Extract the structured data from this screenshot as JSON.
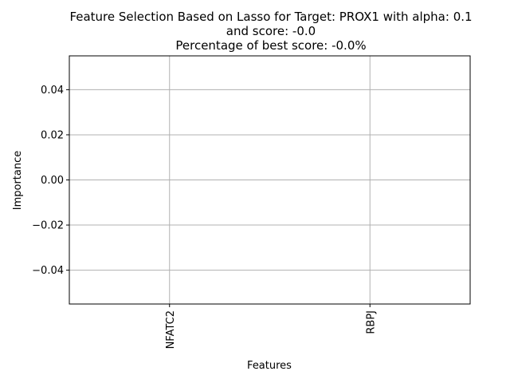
{
  "chart_data": {
    "type": "bar",
    "title_lines": [
      "Feature Selection Based on Lasso for Target: PROX1 with alpha: 0.1",
      "and score: -0.0",
      "Percentage of best score: -0.0%"
    ],
    "xlabel": "Features",
    "ylabel": "Importance",
    "categories": [
      "NFATC2",
      "RBPJ"
    ],
    "values": [
      0.0,
      0.0
    ],
    "ylim": [
      -0.055,
      0.055
    ],
    "yticks": [
      {
        "value": 0.04,
        "label": "0.04"
      },
      {
        "value": 0.02,
        "label": "0.02"
      },
      {
        "value": 0.0,
        "label": "0.00"
      },
      {
        "value": -0.02,
        "label": "−0.02"
      },
      {
        "value": -0.04,
        "label": "−0.04"
      }
    ],
    "grid": true,
    "colors": {
      "bar": "#1f77b4",
      "grid": "#b0b0b0",
      "axes": "#000000"
    }
  }
}
